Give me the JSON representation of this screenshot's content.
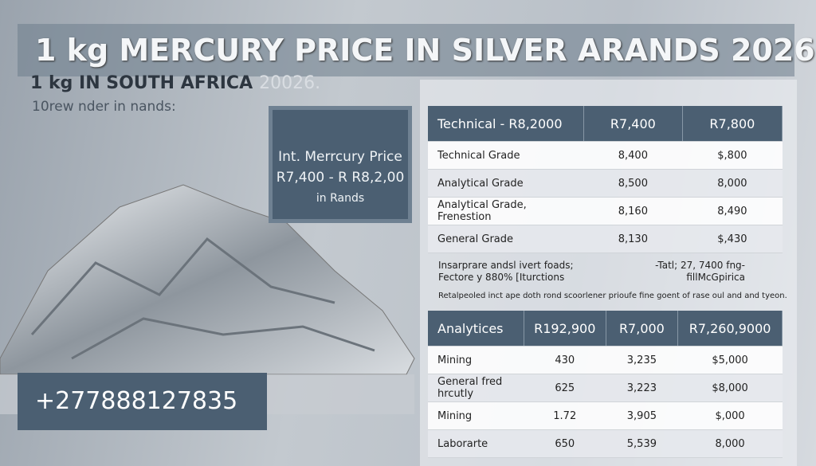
{
  "header": {
    "title": "1 kg MERCURY PRICE IN SILVER ARANDS 2026 :",
    "subtitle": "1 kg IN SOUTH AFRICA",
    "subtitle_ghost": "20026.",
    "tagline": "10rew nder in nands:"
  },
  "price_box": {
    "line1": "Int. Merrcury Price",
    "line2": "R7,400 - R R8,2,00",
    "line3": "in Rands"
  },
  "contact": {
    "phone": "+277888127835"
  },
  "table1": {
    "header": [
      "Technical  -  R8,2000",
      "R7,400",
      "R7,800"
    ],
    "rows": [
      [
        "Technical Grade",
        "8,400",
        "$,800"
      ],
      [
        "Analytical Grade",
        "8,500",
        "8,000"
      ],
      [
        "Analytical Grade, Frenestion",
        "8,160",
        "8,490"
      ],
      [
        "General Grade",
        "8,130",
        "$,430"
      ]
    ]
  },
  "notes": {
    "left": [
      "Insarprare andsl ivert foads;",
      "Fectore y 880% [Iturctions"
    ],
    "right": [
      "-Tatl; 27, 7400 fng-",
      "fillMcGpirica"
    ],
    "footer": "Retalpeoled inct ape doth rond scoorlener prioufe fine goent of rase oul and and tyeon."
  },
  "table2": {
    "header": [
      "Analytices",
      "R192,900",
      "R7,000",
      "R7,260,9000"
    ],
    "rows": [
      [
        "Mining",
        "430",
        "3,235",
        "$5,000"
      ],
      [
        "General fred hrcutly",
        "625",
        "3,223",
        "$8,000"
      ],
      [
        "Mining",
        "1.72",
        "3,905",
        "$,000"
      ],
      [
        "Laborarte",
        "650",
        "5,539",
        "8,000"
      ]
    ]
  }
}
